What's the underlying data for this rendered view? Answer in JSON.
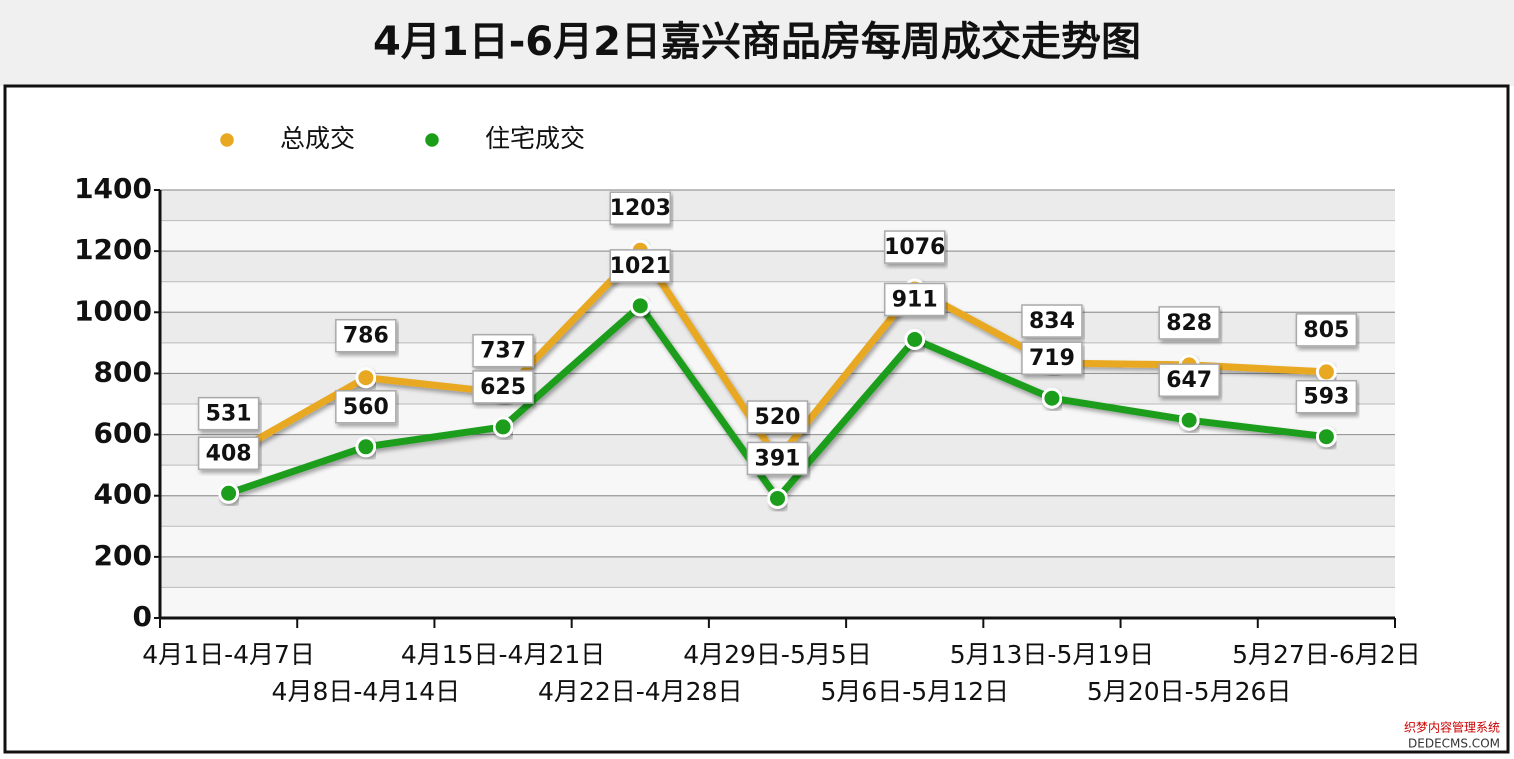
{
  "chart_data": {
    "type": "line",
    "title": "4月1日-6月2日嘉兴商品房每周成交走势图",
    "categories": [
      "4月1日-4月7日",
      "4月8日-4月14日",
      "4月15日-4月21日",
      "4月22日-4月28日",
      "4月29日-5月5日",
      "5月6日-5月12日",
      "5月13日-5月19日",
      "5月20日-5月26日",
      "5月27日-6月2日"
    ],
    "series": [
      {
        "name": "总成交",
        "color": "#e8a820",
        "values": [
          531,
          786,
          737,
          1203,
          520,
          1076,
          834,
          828,
          805
        ]
      },
      {
        "name": "住宅成交",
        "color": "#1a9e1a",
        "values": [
          408,
          560,
          625,
          1021,
          391,
          911,
          719,
          647,
          593
        ]
      }
    ],
    "ylim": [
      0,
      1400
    ],
    "yticks": [
      0,
      200,
      400,
      600,
      800,
      1000,
      1200,
      1400
    ],
    "grid": true,
    "legend": "top-left",
    "data_labels": true
  },
  "watermark": [
    "织梦内容管理系统",
    "DEDECMS.COM"
  ]
}
